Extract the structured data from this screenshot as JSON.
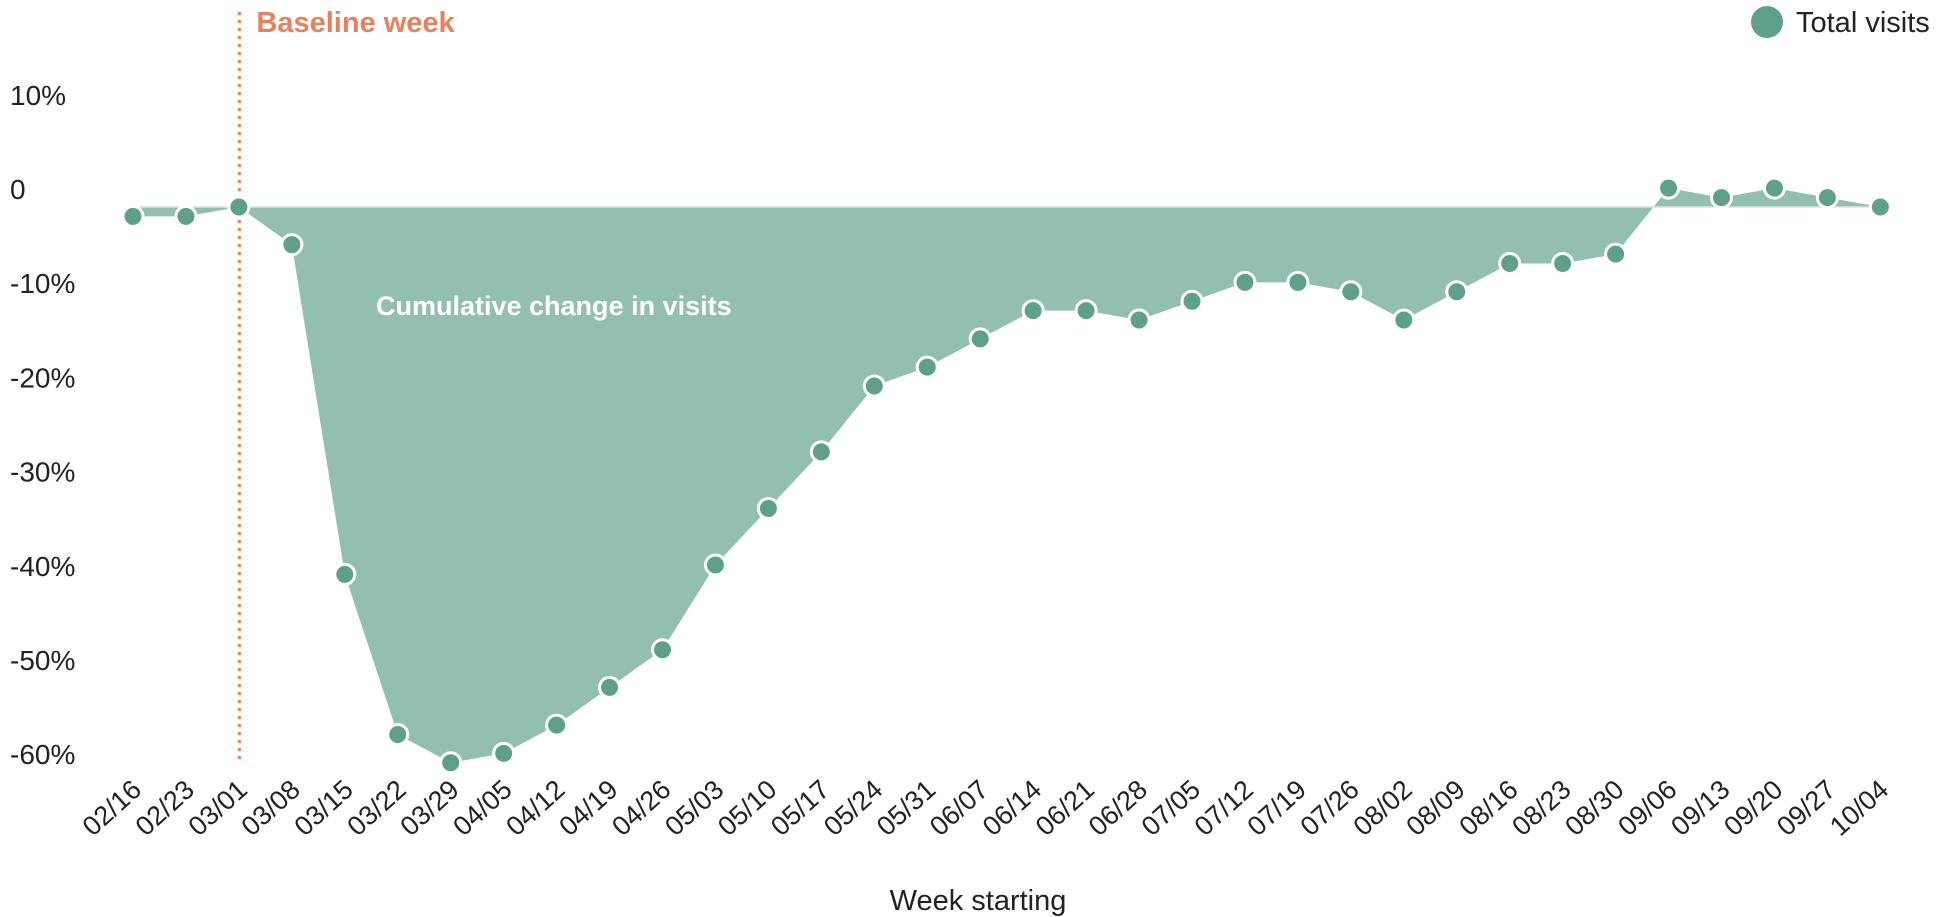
{
  "chart_data": {
    "type": "area",
    "xlabel": "Week starting",
    "ylabel": "",
    "ylim": [
      -60,
      10
    ],
    "yticks": [
      10,
      0,
      -10,
      -20,
      -30,
      -40,
      -50,
      -60
    ],
    "ytick_labels": [
      "10%",
      "0",
      "-10%",
      "-20%",
      "-30%",
      "-40%",
      "-50%",
      "-60%"
    ],
    "categories": [
      "02/16",
      "02/23",
      "03/01",
      "03/08",
      "03/15",
      "03/22",
      "03/29",
      "04/05",
      "04/12",
      "04/19",
      "04/26",
      "05/03",
      "05/10",
      "05/17",
      "05/24",
      "05/31",
      "06/07",
      "06/14",
      "06/21",
      "06/28",
      "07/05",
      "07/12",
      "07/19",
      "07/26",
      "08/02",
      "08/09",
      "08/16",
      "08/23",
      "08/30",
      "09/06",
      "09/13",
      "09/20",
      "09/27",
      "10/04"
    ],
    "series": [
      {
        "name": "Total visits",
        "values": [
          -1,
          -1,
          0,
          -4,
          -39,
          -56,
          -59,
          -58,
          -55,
          -51,
          -47,
          -38,
          -32,
          -26,
          -19,
          -17,
          -14,
          -11,
          -11,
          -12,
          -10,
          -8,
          -8,
          -9,
          -12,
          -9,
          -6,
          -6,
          -5,
          2,
          1,
          2,
          1,
          0
        ]
      }
    ],
    "baseline_category": "03/01",
    "baseline_label": "Baseline week",
    "area_annotation": "Cumulative change in visits",
    "legend_position": "top-right",
    "grid": false,
    "colors": {
      "area": "#93bfb1",
      "marker": "#5fa08a",
      "baseline": "#e8805c",
      "zero_line": "#d6e6e0"
    }
  }
}
